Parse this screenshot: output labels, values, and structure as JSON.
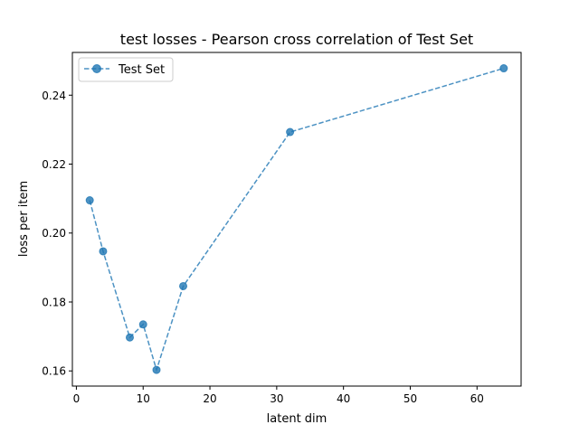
{
  "chart_data": {
    "type": "line",
    "title": "test losses - Pearson cross correlation of Test Set",
    "xlabel": "latent dim",
    "ylabel": "loss per item",
    "xlim": [
      -0.6,
      66.6
    ],
    "ylim": [
      0.1556,
      0.2524
    ],
    "xticks": [
      0,
      10,
      20,
      30,
      40,
      50,
      60
    ],
    "yticks": [
      0.16,
      0.18,
      0.2,
      0.22,
      0.24
    ],
    "ytick_labels": [
      "0.16",
      "0.18",
      "0.20",
      "0.22",
      "0.24"
    ],
    "grid": false,
    "legend": {
      "position": "top-left"
    },
    "series": [
      {
        "name": "Test Set",
        "color": "#1f77b4",
        "linestyle": "dashed",
        "marker": "circle",
        "x": [
          2,
          4,
          8,
          10,
          12,
          16,
          32,
          64
        ],
        "y": [
          0.2095,
          0.1947,
          0.1697,
          0.1735,
          0.1603,
          0.1846,
          0.2293,
          0.2478
        ]
      }
    ]
  }
}
